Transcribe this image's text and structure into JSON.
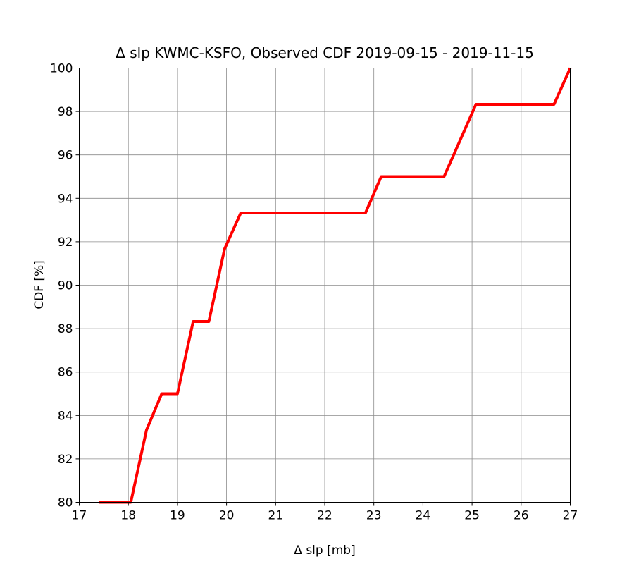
{
  "chart_data": {
    "type": "line",
    "title": "Δ slp KWMC-KSFO, Observed CDF 2019-09-15 - 2019-11-15",
    "xlabel": "Δ slp [mb]",
    "ylabel": "CDF [%]",
    "xlim": [
      17,
      27
    ],
    "ylim": [
      80,
      100
    ],
    "xticks": [
      "17",
      "18",
      "19",
      "20",
      "21",
      "22",
      "23",
      "24",
      "25",
      "26",
      "27"
    ],
    "yticks": [
      "80",
      "82",
      "84",
      "86",
      "88",
      "90",
      "92",
      "94",
      "96",
      "98",
      "100"
    ],
    "grid": true,
    "series": [
      {
        "color": "#ff0000",
        "x": [
          17.4,
          18.05,
          18.37,
          18.68,
          19.0,
          19.32,
          19.64,
          19.96,
          20.29,
          22.83,
          23.15,
          24.43,
          25.08,
          26.67,
          27.0
        ],
        "y": [
          80.0,
          80.0,
          83.33,
          85.0,
          85.0,
          88.33,
          88.33,
          91.67,
          93.33,
          93.33,
          95.0,
          95.0,
          98.33,
          98.33,
          100.0
        ]
      }
    ]
  }
}
